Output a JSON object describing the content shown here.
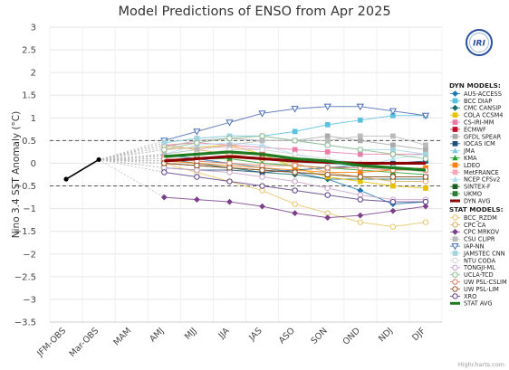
{
  "chart_data": {
    "type": "line",
    "title": "Model Predictions of ENSO from Apr 2025",
    "ylabel": "Nino 3.4 SST Anomaly (°C)",
    "xlabel": "",
    "categories": [
      "JFM-OBS",
      "Mar-OBS",
      "MAM",
      "AMJ",
      "MJJ",
      "JJA",
      "JAS",
      "ASO",
      "SON",
      "OND",
      "NDJ",
      "DJF"
    ],
    "ylim": [
      -3.5,
      3
    ],
    "yticks": [
      "3",
      "2.5",
      "2",
      "1.5",
      "1",
      "0.5",
      "0",
      "−0.5",
      "−1",
      "−1.5",
      "−2",
      "−2.5",
      "−3",
      "−3.5"
    ],
    "ytick_values": [
      3,
      2.5,
      2,
      1.5,
      1,
      0.5,
      0,
      -0.5,
      -1,
      -1.5,
      -2,
      -2.5,
      -3,
      -3.5
    ],
    "reference_lines": [
      0.5,
      -0.5
    ],
    "grid": true,
    "legend_position": "right",
    "observed": {
      "x": [
        "JFM-OBS",
        "Mar-OBS"
      ],
      "values": [
        -0.35,
        0.08
      ],
      "color": "#000000"
    },
    "dyn_header": "DYN MODELS:",
    "stat_header": "STAT MODELS:",
    "dyn_series": [
      {
        "name": "AUS-ACCESS",
        "color": "#1f77b4",
        "marker": "diamond",
        "values": [
          0.18,
          0.1,
          0.0,
          -0.1,
          -0.2,
          -0.35,
          -0.6,
          -0.9,
          -0.85
        ]
      },
      {
        "name": "BCC DIAP",
        "color": "#5bc0de",
        "marker": "square",
        "values": [
          0.45,
          0.55,
          0.6,
          0.6,
          0.7,
          0.85,
          0.95,
          1.05,
          1.05
        ]
      },
      {
        "name": "CMC CANSIP",
        "color": "#1a6b6b",
        "marker": "diamond",
        "values": [
          0.1,
          0.0,
          -0.1,
          -0.2,
          -0.25,
          -0.35,
          -0.35,
          -0.35,
          -0.35
        ]
      },
      {
        "name": "COLA CCSM4",
        "color": "#e6c200",
        "marker": "square",
        "values": [
          0.3,
          0.35,
          0.4,
          0.2,
          -0.1,
          -0.3,
          -0.4,
          -0.5,
          -0.55
        ]
      },
      {
        "name": "CS-IRI-MM",
        "color": "#e87ea8",
        "marker": "square",
        "values": [
          0.4,
          0.45,
          0.4,
          0.35,
          0.3,
          0.25,
          0.2,
          0.2,
          0.2
        ]
      },
      {
        "name": "ECMWF",
        "color": "#c0102a",
        "marker": "square",
        "values": [
          0.15,
          0.2,
          0.25,
          0.2
        ]
      },
      {
        "name": "GFDL SPEAR",
        "color": "#aaaaaa",
        "marker": "square",
        "values": [
          0.35,
          0.5,
          0.55,
          0.5,
          0.5,
          0.6,
          0.5,
          0.4,
          0.3
        ]
      },
      {
        "name": "IOCAS ICM",
        "color": "#1f4e79",
        "marker": "square",
        "values": [
          -0.1,
          -0.15,
          -0.15,
          -0.2,
          -0.15,
          -0.1,
          -0.05,
          0.0,
          0.05
        ]
      },
      {
        "name": "JMA",
        "color": "#7ec8e3",
        "marker": "triangle",
        "values": [
          0.1,
          0.05,
          0.0,
          -0.1
        ]
      },
      {
        "name": "KMA",
        "color": "#2ca02c",
        "marker": "triangle",
        "values": [
          0.05,
          0.1,
          0.1,
          0.0,
          -0.05,
          -0.1,
          -0.15,
          -0.2,
          -0.25
        ]
      },
      {
        "name": "LDEO",
        "color": "#ff7f0e",
        "marker": "square",
        "values": [
          0.05,
          0.0,
          -0.05,
          -0.1,
          -0.15,
          -0.2,
          -0.2,
          -0.15,
          -0.1
        ]
      },
      {
        "name": "MetFRANCE",
        "color": "#f4a7b9",
        "marker": "square",
        "values": [
          0.3,
          0.35,
          0.35,
          0.3
        ]
      },
      {
        "name": "NCEP CFSv2",
        "color": "#aee0f5",
        "marker": "triangle",
        "values": [
          0.2,
          0.4,
          0.45,
          0.4,
          0.2,
          0.0,
          -0.1,
          0.1,
          0.2
        ]
      },
      {
        "name": "SINTEX-F",
        "color": "#1b5e20",
        "marker": "square",
        "values": [
          0.0,
          -0.05,
          -0.1,
          -0.15,
          -0.2,
          -0.25,
          -0.3,
          -0.3,
          -0.3
        ]
      },
      {
        "name": "UKMO",
        "color": "#2e7d32",
        "marker": "square",
        "values": [
          0.05,
          0.1,
          0.15,
          0.1
        ]
      }
    ],
    "dyn_avg": {
      "name": "DYN AVG",
      "color": "#8b0000",
      "values": [
        0.05,
        0.1,
        0.15,
        0.1,
        0.05,
        0.02,
        0.0,
        0.0,
        0.0
      ]
    },
    "stat_series": [
      {
        "name": "BCC_RZDM",
        "color": "#e8c56a",
        "marker": "circle",
        "values": [
          0.0,
          -0.2,
          -0.4,
          -0.6,
          -0.9,
          -1.1,
          -1.3,
          -1.4,
          -1.3
        ]
      },
      {
        "name": "CPC CA",
        "color": "#d9a85a",
        "marker": "circle",
        "values": [
          0.4,
          0.3,
          0.2,
          0.1,
          0.0,
          -0.2,
          -0.3,
          -0.4,
          -0.4
        ]
      },
      {
        "name": "CPC MRKOV",
        "color": "#7b3f8c",
        "marker": "diamond",
        "values": [
          -0.75,
          -0.8,
          -0.85,
          -0.95,
          -1.1,
          -1.2,
          -1.15,
          -1.05,
          -0.95
        ]
      },
      {
        "name": "CSU CLIPR",
        "color": "#bbbbbb",
        "marker": "square",
        "values": [
          0.2,
          0.3,
          0.4,
          0.5,
          0.5,
          0.5,
          0.6,
          0.6,
          0.4
        ]
      },
      {
        "name": "IAP-NN",
        "color": "#4b6cb7",
        "marker": "triangle-down",
        "values": [
          0.5,
          0.7,
          0.9,
          1.1,
          1.2,
          1.25,
          1.25,
          1.15,
          1.05
        ]
      },
      {
        "name": "JAMSTEC CNN",
        "color": "#a4d4e0",
        "marker": "square",
        "values": [
          0.45,
          0.55,
          0.6,
          0.6,
          0.5,
          0.4,
          0.3,
          0.3,
          0.2
        ]
      },
      {
        "name": "NTU CODA",
        "color": "#d3d3d3",
        "marker": "circle",
        "values": [
          0.1,
          0.2,
          0.3,
          0.3,
          0.2,
          0.1,
          0.0,
          -0.1,
          -0.2
        ]
      },
      {
        "name": "TONGJI-ML",
        "color": "#c8a2c8",
        "marker": "circle",
        "values": [
          -0.1,
          -0.15,
          -0.2,
          -0.3,
          -0.4,
          -0.55,
          -0.7,
          -0.8,
          -0.8
        ]
      },
      {
        "name": "UCLA-TCD",
        "color": "#8fbc8f",
        "marker": "circle",
        "values": [
          0.3,
          0.45,
          0.55,
          0.6,
          0.5,
          0.4,
          0.3,
          0.2,
          0.1
        ]
      },
      {
        "name": "UW PSL-CSLIM",
        "color": "#e07a5f",
        "marker": "circle",
        "values": [
          0.1,
          0.05,
          0.0,
          -0.05,
          -0.05,
          -0.1,
          -0.1,
          -0.15,
          -0.15
        ]
      },
      {
        "name": "UW PSL-LIM",
        "color": "#a0522d",
        "marker": "circle",
        "values": [
          0.0,
          -0.05,
          -0.1,
          -0.15,
          -0.2,
          -0.25,
          -0.3,
          -0.3,
          -0.3
        ]
      },
      {
        "name": "XRO",
        "color": "#5a3e85",
        "marker": "circle",
        "values": [
          -0.2,
          -0.3,
          -0.4,
          -0.5,
          -0.6,
          -0.7,
          -0.8,
          -0.85,
          -0.85
        ]
      }
    ],
    "stat_avg": {
      "name": "STAT AVG",
      "color": "#1e7a1e",
      "values": [
        0.15,
        0.2,
        0.25,
        0.2,
        0.1,
        0.05,
        -0.05,
        -0.1,
        -0.15
      ]
    }
  },
  "logo": {
    "text": "IRI"
  },
  "credits": "Highcharts.com"
}
